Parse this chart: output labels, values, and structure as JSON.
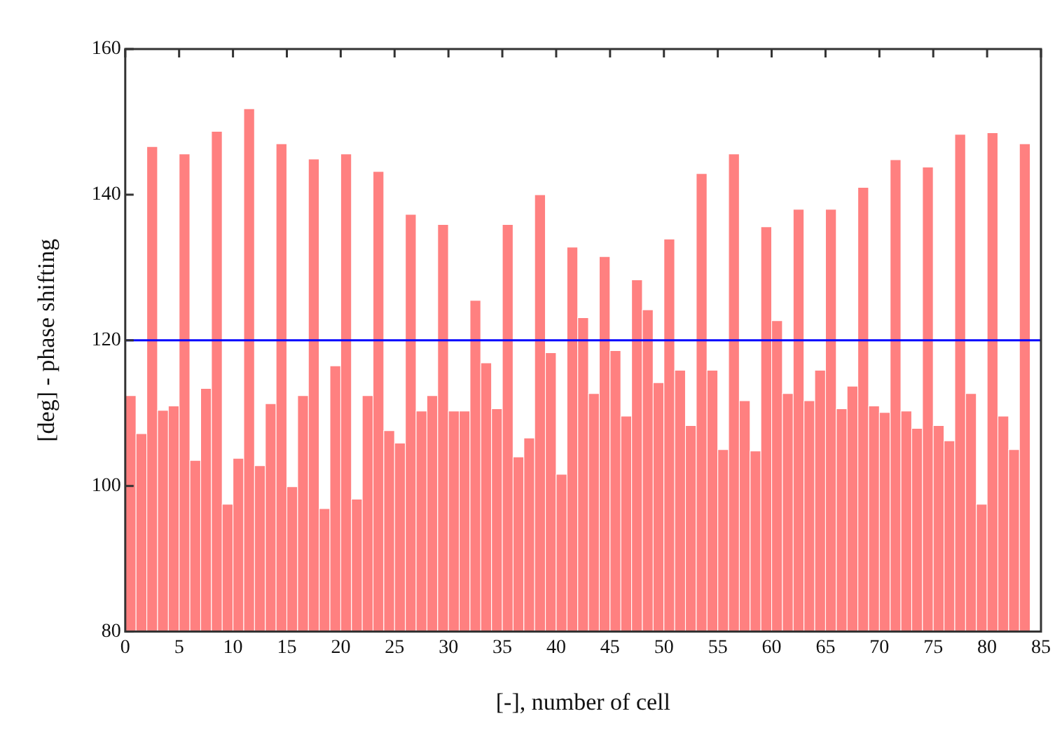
{
  "chart_data": {
    "type": "histogram",
    "xlabel": "[-], number of cell",
    "ylabel": "[deg] - phase shifting",
    "bins": [
      0,
      1,
      2,
      3,
      4,
      5,
      6,
      7,
      8,
      9,
      10,
      11,
      12,
      13,
      14,
      15,
      16,
      17,
      18,
      19,
      20,
      21,
      22,
      23,
      24,
      25,
      26,
      27,
      28,
      29,
      30,
      31,
      32,
      33,
      34,
      35,
      36,
      37,
      38,
      39,
      40,
      41,
      42,
      43,
      44,
      45,
      46,
      47,
      48,
      49,
      50,
      51,
      52,
      53,
      54,
      55,
      56,
      57,
      58,
      59,
      60,
      61,
      62,
      63,
      64,
      65,
      66,
      67,
      68,
      69,
      70,
      71,
      72,
      73,
      74,
      75,
      76,
      77,
      78,
      79,
      80,
      81,
      82,
      83,
      84
    ],
    "values": [
      112.4,
      107.2,
      146.6,
      110.4,
      111,
      145.6,
      103.5,
      113.4,
      148.7,
      97.5,
      103.8,
      151.8,
      102.8,
      111.3,
      147,
      99.9,
      112.4,
      144.9,
      96.9,
      116.5,
      145.6,
      98.2,
      112.4,
      143.2,
      107.6,
      105.9,
      137.3,
      110.3,
      112.4,
      135.9,
      110.3,
      110.3,
      125.5,
      116.9,
      110.6,
      135.9,
      104,
      106.6,
      140,
      118.3,
      101.6,
      132.8,
      123.1,
      112.7,
      131.5,
      118.6,
      109.6,
      128.3,
      124.2,
      114.2,
      133.9,
      115.9,
      108.3,
      142.9,
      115.9,
      105,
      145.6,
      111.7,
      104.8,
      135.6,
      122.7,
      112.7,
      138,
      111.7,
      115.9,
      138,
      110.6,
      113.7,
      141,
      111,
      110.1,
      144.8,
      110.3,
      107.9,
      143.8,
      108.3,
      106.2,
      148.3,
      112.7,
      97.5,
      148.5,
      109.6,
      105,
      147
    ],
    "color": "#ff8080",
    "xlim": [
      0,
      85
    ],
    "xticks": [
      0,
      5,
      10,
      15,
      20,
      25,
      30,
      35,
      40,
      45,
      50,
      55,
      60,
      65,
      70,
      75,
      80,
      85
    ],
    "ylim": [
      80,
      160
    ],
    "yticks": [
      80,
      100,
      120,
      140,
      160
    ],
    "ref_lines": [
      {
        "axis": "y",
        "value": 120,
        "color": "#0000ff"
      }
    ],
    "grid": false,
    "legend": false
  }
}
